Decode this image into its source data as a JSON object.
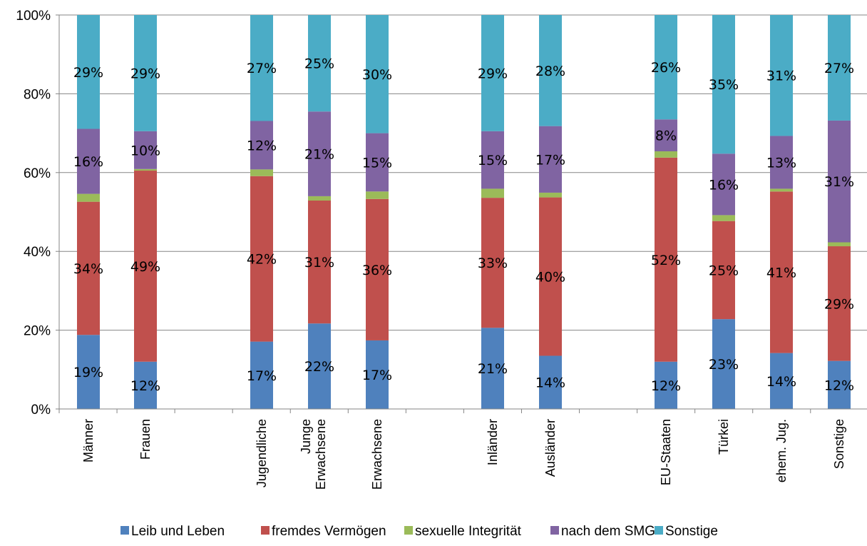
{
  "chart_data": {
    "type": "bar",
    "stacked": true,
    "percent": true,
    "title": "",
    "xlabel": "",
    "ylabel": "",
    "ylim": [
      0,
      100
    ],
    "yticks": [
      "0%",
      "20%",
      "40%",
      "60%",
      "80%",
      "100%"
    ],
    "grid": true,
    "legend_position": "bottom",
    "groups": [
      [
        "Männer",
        "Frauen"
      ],
      [
        "Jugendliche",
        "Junge Erwachsene",
        "Erwachsene"
      ],
      [
        "Inländer",
        "Ausländer"
      ],
      [
        "EU-Staaten",
        "Türkei",
        "ehem. Jug.",
        "Sonstige"
      ]
    ],
    "categories": [
      "Männer",
      "Frauen",
      "Jugendliche",
      "Junge Erwachsene",
      "Erwachsene",
      "Inländer",
      "Ausländer",
      "EU-Staaten",
      "Türkei",
      "ehem. Jug.",
      "Sonstige"
    ],
    "series": [
      {
        "name": "Leib und Leben",
        "color": "#4F81BD",
        "values": [
          18.8,
          12.0,
          17.1,
          21.7,
          17.4,
          20.6,
          13.5,
          12.0,
          22.8,
          14.2,
          12.2
        ],
        "labels": [
          "19%",
          "12%",
          "17%",
          "22%",
          "17%",
          "21%",
          "14%",
          "12%",
          "23%",
          "14%",
          "12%"
        ]
      },
      {
        "name": "fremdes Vermögen",
        "color": "#C0504D",
        "values": [
          33.8,
          48.5,
          42.0,
          31.2,
          35.9,
          33.0,
          40.2,
          51.8,
          24.9,
          41.0,
          29.1
        ],
        "labels": [
          "34%",
          "49%",
          "42%",
          "31%",
          "36%",
          "33%",
          "40%",
          "52%",
          "25%",
          "41%",
          "29%"
        ]
      },
      {
        "name": "sexuelle Integrität",
        "color": "#9BBB59",
        "values": [
          2.0,
          0.4,
          1.7,
          1.1,
          1.9,
          2.3,
          1.2,
          1.6,
          1.5,
          0.7,
          1.0
        ],
        "labels": [
          "",
          "",
          "",
          "",
          "",
          "",
          "",
          "",
          "",
          "",
          ""
        ]
      },
      {
        "name": "nach dem SMG",
        "color": "#8064A2",
        "values": [
          16.5,
          9.6,
          12.3,
          21.5,
          14.8,
          14.6,
          16.9,
          8.1,
          15.6,
          13.4,
          30.9
        ],
        "labels": [
          "16%",
          "10%",
          "12%",
          "21%",
          "15%",
          "15%",
          "17%",
          "8%",
          "16%",
          "13%",
          "31%"
        ]
      },
      {
        "name": "Sonstige",
        "color": "#4BACC6",
        "values": [
          28.9,
          29.5,
          26.9,
          24.5,
          30.0,
          29.5,
          28.2,
          26.5,
          35.2,
          30.7,
          26.8
        ],
        "labels": [
          "29%",
          "29%",
          "27%",
          "25%",
          "30%",
          "29%",
          "28%",
          "26%",
          "35%",
          "31%",
          "27%"
        ]
      }
    ]
  }
}
